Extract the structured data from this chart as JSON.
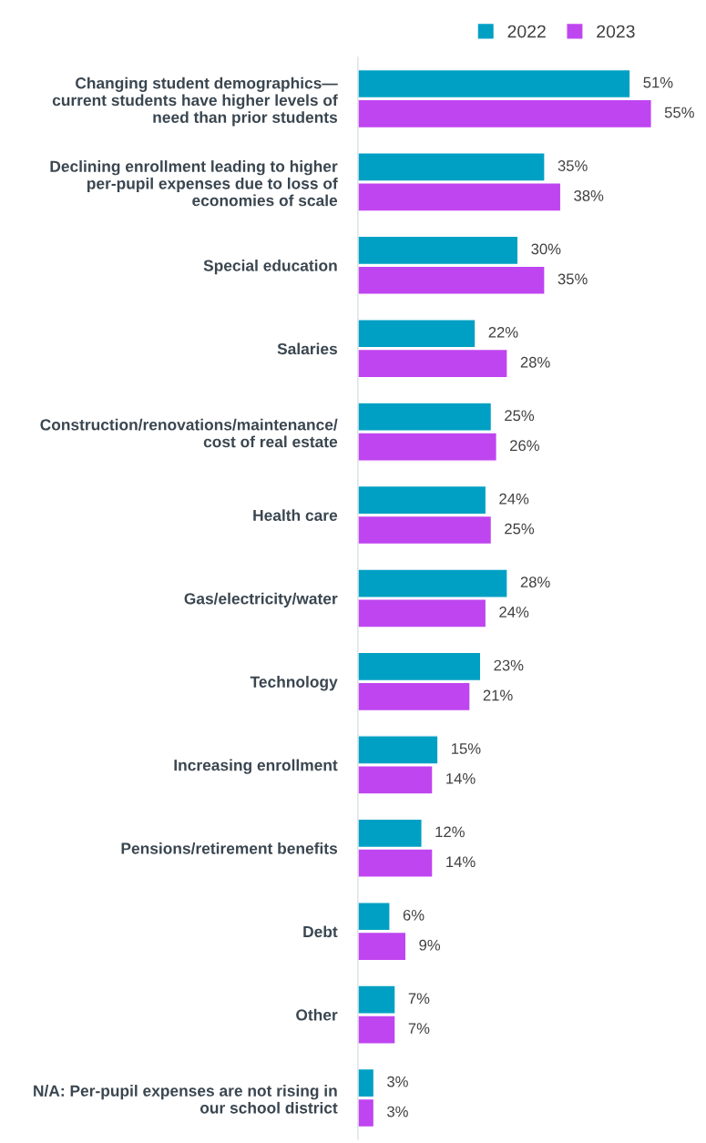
{
  "chart_data": {
    "type": "bar",
    "orientation": "horizontal",
    "legend": "top",
    "grid": false,
    "categories": [
      "Changing student demographics—\ncurrent students have higher levels of\nneed than prior students",
      "Declining enrollment leading to higher\nper-pupil expenses due to loss of\neconomies of scale",
      "Special education",
      "Salaries",
      "Construction/renovations/maintenance/\ncost of real estate",
      "Health care",
      "Gas/electricity/water",
      "Technology",
      "Increasing enrollment",
      "Pensions/retirement benefits",
      "Debt",
      "Other",
      "N/A: Per-pupil expenses are not rising in\nour school district"
    ],
    "series": [
      {
        "name": "2022",
        "color": "#00a0c4",
        "values": [
          51,
          35,
          30,
          22,
          25,
          24,
          28,
          23,
          15,
          12,
          6,
          7,
          3
        ],
        "value_labels": [
          "51%",
          "35%",
          "30%",
          "22%",
          "25%",
          "24%",
          "28%",
          "23%",
          "15%",
          "12%",
          "6%",
          "7%",
          "3%"
        ]
      },
      {
        "name": "2023",
        "color": "#bf45f0",
        "values": [
          55,
          38,
          35,
          28,
          26,
          25,
          24,
          21,
          14,
          14,
          9,
          7,
          3
        ],
        "value_labels": [
          "55%",
          "38%",
          "35%",
          "28%",
          "26%",
          "25%",
          "24%",
          "21%",
          "14%",
          "14%",
          "9%",
          "7%",
          "3%"
        ]
      }
    ]
  }
}
